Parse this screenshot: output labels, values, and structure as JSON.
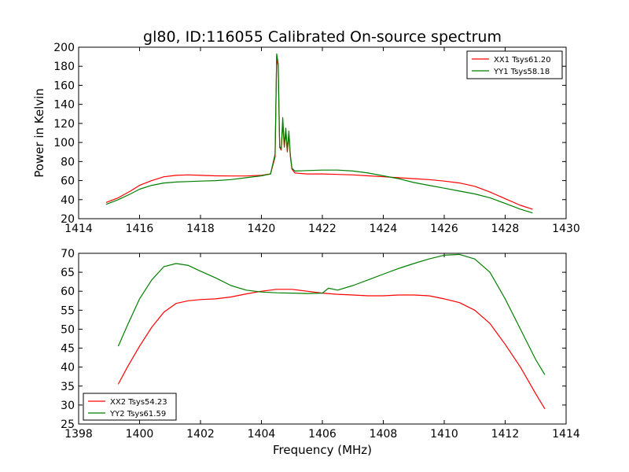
{
  "figure_title": "gl80, ID:116055 Calibrated On-source spectrum",
  "chart_data": [
    {
      "type": "line",
      "title": "gl80, ID:116055 Calibrated On-source spectrum",
      "xlabel": "",
      "ylabel": "Power in Kelvin",
      "xlim": [
        1414,
        1430
      ],
      "ylim": [
        20,
        200
      ],
      "xticks": [
        1414,
        1416,
        1418,
        1420,
        1422,
        1424,
        1426,
        1428,
        1430
      ],
      "yticks": [
        20,
        40,
        60,
        80,
        100,
        120,
        140,
        160,
        180,
        200
      ],
      "legend_position": "top-right",
      "series": [
        {
          "name": "XX1 Tsys61.20",
          "color": "#ff0000",
          "x": [
            1414.9,
            1415.3,
            1415.7,
            1416.0,
            1416.4,
            1416.8,
            1417.2,
            1417.6,
            1418.0,
            1418.5,
            1419.0,
            1419.5,
            1420.0,
            1420.3,
            1420.45,
            1420.5,
            1420.55,
            1420.6,
            1420.65,
            1420.7,
            1420.75,
            1420.8,
            1420.85,
            1420.9,
            1420.95,
            1421.0,
            1421.1,
            1421.5,
            1422.0,
            1422.5,
            1423.0,
            1423.5,
            1424.0,
            1424.5,
            1425.0,
            1425.5,
            1426.0,
            1426.5,
            1427.0,
            1427.5,
            1428.0,
            1428.5,
            1428.9
          ],
          "values": [
            37,
            42,
            49,
            55,
            60,
            64,
            65.5,
            66,
            65.5,
            65,
            64.8,
            64.8,
            65.5,
            67,
            85,
            190,
            180,
            95,
            92,
            120,
            95,
            110,
            90,
            108,
            85,
            72,
            68,
            67,
            67,
            66.5,
            66,
            65,
            64,
            63,
            62,
            61,
            59.5,
            57.5,
            54,
            48,
            41,
            34,
            30
          ]
        },
        {
          "name": "YY1 Tsys58.18",
          "color": "#007f00",
          "x": [
            1414.9,
            1415.3,
            1415.7,
            1416.0,
            1416.4,
            1416.8,
            1417.2,
            1417.6,
            1418.0,
            1418.5,
            1419.0,
            1419.5,
            1420.0,
            1420.3,
            1420.45,
            1420.5,
            1420.55,
            1420.6,
            1420.65,
            1420.7,
            1420.75,
            1420.8,
            1420.85,
            1420.9,
            1420.95,
            1421.0,
            1421.1,
            1421.5,
            1422.0,
            1422.5,
            1423.0,
            1423.5,
            1424.0,
            1424.5,
            1425.0,
            1425.5,
            1426.0,
            1426.5,
            1427.0,
            1427.5,
            1428.0,
            1428.5,
            1428.9
          ],
          "values": [
            35,
            40,
            46,
            51,
            55,
            57.5,
            58.5,
            59,
            59.5,
            60,
            61,
            63,
            65,
            67,
            88,
            193,
            183,
            96,
            93,
            126,
            97,
            115,
            92,
            112,
            87,
            73,
            70,
            70.5,
            71,
            71,
            70,
            68,
            65,
            62,
            58,
            55,
            52,
            49,
            46,
            42,
            36,
            30,
            26
          ]
        }
      ]
    },
    {
      "type": "line",
      "title": "",
      "xlabel": "Frequency (MHz)",
      "ylabel": "",
      "xlim": [
        1398,
        1414
      ],
      "ylim": [
        25,
        70
      ],
      "xticks": [
        1398,
        1400,
        1402,
        1404,
        1406,
        1408,
        1410,
        1412,
        1414
      ],
      "yticks": [
        25,
        30,
        35,
        40,
        45,
        50,
        55,
        60,
        65,
        70
      ],
      "legend_position": "bottom-left",
      "series": [
        {
          "name": "XX2 Tsys54.23",
          "color": "#ff0000",
          "x": [
            1399.3,
            1399.6,
            1400.0,
            1400.4,
            1400.8,
            1401.2,
            1401.6,
            1402.0,
            1402.5,
            1403.0,
            1403.5,
            1404.0,
            1404.5,
            1405.0,
            1405.5,
            1406.0,
            1406.5,
            1407.0,
            1407.5,
            1408.0,
            1408.5,
            1409.0,
            1409.5,
            1410.0,
            1410.5,
            1411.0,
            1411.5,
            1412.0,
            1412.5,
            1413.0,
            1413.3
          ],
          "values": [
            35.5,
            40,
            45.5,
            50.5,
            54.5,
            56.8,
            57.5,
            57.8,
            58,
            58.5,
            59.3,
            60,
            60.5,
            60.5,
            60,
            59.5,
            59.2,
            59,
            58.8,
            58.8,
            59,
            59,
            58.8,
            58,
            57,
            55,
            51.5,
            46,
            40,
            33,
            29
          ]
        },
        {
          "name": "YY2 Tsys61.59",
          "color": "#007f00",
          "x": [
            1399.3,
            1399.6,
            1400.0,
            1400.4,
            1400.8,
            1401.2,
            1401.6,
            1402.0,
            1402.5,
            1403.0,
            1403.5,
            1404.0,
            1404.5,
            1405.0,
            1405.5,
            1406.0,
            1406.2,
            1406.5,
            1407.0,
            1407.5,
            1408.0,
            1408.5,
            1409.0,
            1409.5,
            1410.0,
            1410.5,
            1411.0,
            1411.5,
            1412.0,
            1412.5,
            1413.0,
            1413.3
          ],
          "values": [
            45.5,
            51,
            58,
            63,
            66.5,
            67.3,
            66.8,
            65.3,
            63.5,
            61.5,
            60.3,
            59.8,
            59.6,
            59.5,
            59.4,
            59.5,
            60.8,
            60.3,
            61.5,
            63,
            64.5,
            66,
            67.3,
            68.5,
            69.5,
            69.7,
            68.5,
            65,
            58,
            50,
            42,
            38
          ]
        }
      ]
    }
  ]
}
